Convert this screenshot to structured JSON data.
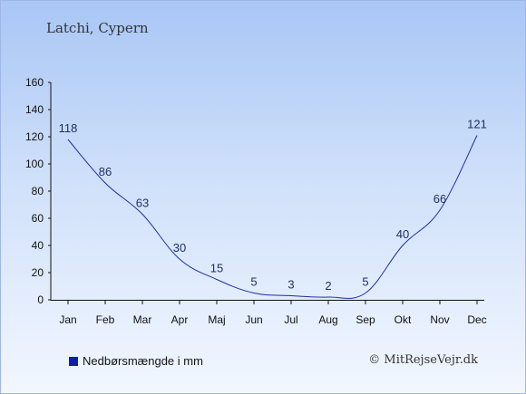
{
  "header": {
    "title": "Latchi, Cypern"
  },
  "legend": {
    "label": "Nedbørsmængde i mm",
    "color": "#0b1fa8"
  },
  "copyright": "© MitRejseVejr.dk",
  "colors": {
    "line": "#1b2fa8",
    "axis": "#111111",
    "label": "#1f2f66"
  },
  "chart_data": {
    "type": "line",
    "title": "Latchi, Cypern",
    "xlabel": "",
    "ylabel": "",
    "categories": [
      "Jan",
      "Feb",
      "Mar",
      "Apr",
      "Maj",
      "Jun",
      "Jul",
      "Aug",
      "Sep",
      "Okt",
      "Nov",
      "Dec"
    ],
    "series": [
      {
        "name": "Nedbørsmængde i mm",
        "values": [
          118,
          86,
          63,
          30,
          15,
          5,
          3,
          2,
          5,
          40,
          66,
          121
        ]
      }
    ],
    "ylim": [
      0,
      160
    ],
    "yticks": [
      0,
      20,
      40,
      60,
      80,
      100,
      120,
      140,
      160
    ],
    "grid": false,
    "legend_position": "bottom-left"
  }
}
